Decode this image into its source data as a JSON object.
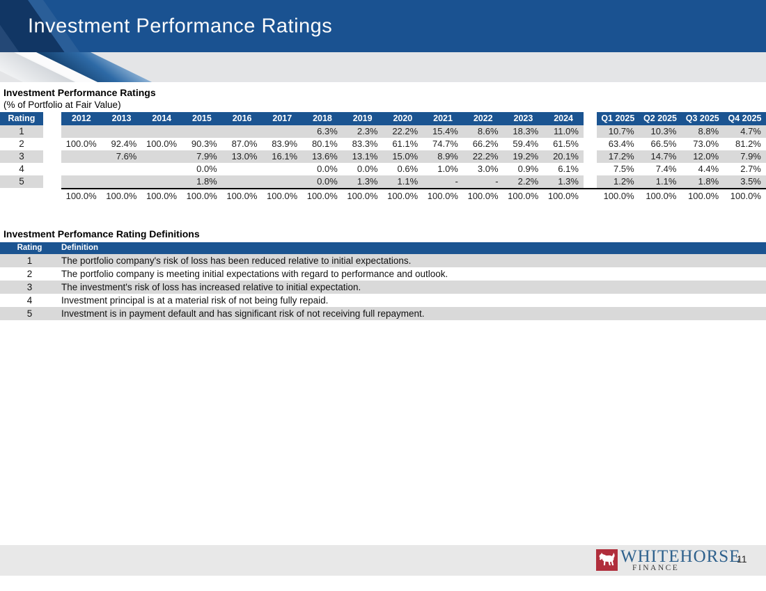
{
  "slide": {
    "title": "Investment Performance Ratings"
  },
  "deco": {
    "dot": "."
  },
  "colors": {
    "header_blue": "#1A5291",
    "table_header_blue": "#1B5491",
    "row_gray": "#D9D9D9",
    "band_gray": "#E4E5E7",
    "footer_gray": "#E8E8E8",
    "logo_red": "#B02E3C",
    "brand_blue": "#2D608C"
  },
  "ratings_table": {
    "heading": "Investment Performance Ratings",
    "subheading": "(% of Portfolio at Fair Value)",
    "rating_col_header": "Rating",
    "year_headers": [
      "2012",
      "2013",
      "2014",
      "2015",
      "2016",
      "2017",
      "2018",
      "2019",
      "2020",
      "2021",
      "2022",
      "2023",
      "2024"
    ],
    "quarter_headers": [
      "Q1 2025",
      "Q2 2025",
      "Q3 2025",
      "Q4 2025"
    ],
    "rows": [
      {
        "rating": "1",
        "years": [
          "",
          "",
          "",
          "",
          "",
          "",
          "6.3%",
          "2.3%",
          "22.2%",
          "15.4%",
          "8.6%",
          "18.3%",
          "11.0%"
        ],
        "quarters": [
          "10.7%",
          "10.3%",
          "8.8%",
          "4.7%"
        ]
      },
      {
        "rating": "2",
        "years": [
          "100.0%",
          "92.4%",
          "100.0%",
          "90.3%",
          "87.0%",
          "83.9%",
          "80.1%",
          "83.3%",
          "61.1%",
          "74.7%",
          "66.2%",
          "59.4%",
          "61.5%"
        ],
        "quarters": [
          "63.4%",
          "66.5%",
          "73.0%",
          "81.2%"
        ]
      },
      {
        "rating": "3",
        "years": [
          "",
          "7.6%",
          "",
          "7.9%",
          "13.0%",
          "16.1%",
          "13.6%",
          "13.1%",
          "15.0%",
          "8.9%",
          "22.2%",
          "19.2%",
          "20.1%"
        ],
        "quarters": [
          "17.2%",
          "14.7%",
          "12.0%",
          "7.9%"
        ]
      },
      {
        "rating": "4",
        "years": [
          "",
          "",
          "",
          "0.0%",
          "",
          "",
          "0.0%",
          "0.0%",
          "0.6%",
          "1.0%",
          "3.0%",
          "0.9%",
          "6.1%"
        ],
        "quarters": [
          "7.5%",
          "7.4%",
          "4.4%",
          "2.7%"
        ]
      },
      {
        "rating": "5",
        "years": [
          "",
          "",
          "",
          "1.8%",
          "",
          "",
          "0.0%",
          "1.3%",
          "1.1%",
          "-",
          "-",
          "2.2%",
          "1.3%"
        ],
        "quarters": [
          "1.2%",
          "1.1%",
          "1.8%",
          "3.5%"
        ]
      }
    ],
    "total_row": {
      "years": [
        "100.0%",
        "100.0%",
        "100.0%",
        "100.0%",
        "100.0%",
        "100.0%",
        "100.0%",
        "100.0%",
        "100.0%",
        "100.0%",
        "100.0%",
        "100.0%",
        "100.0%"
      ],
      "quarters": [
        "100.0%",
        "100.0%",
        "100.0%",
        "100.0%"
      ]
    }
  },
  "definitions_table": {
    "heading": "Investment Perfomance Rating Definitions",
    "col_headers": {
      "rating": "Rating",
      "definition": "Definition"
    },
    "rows": [
      {
        "rating": "1",
        "definition": "The portfolio company's risk of loss has been reduced relative to initial expectations."
      },
      {
        "rating": "2",
        "definition": "The portfolio company is meeting initial expectations with regard to performance and outlook."
      },
      {
        "rating": "3",
        "definition": "The investment's risk of loss has increased relative to initial expectation."
      },
      {
        "rating": "4",
        "definition": "Investment principal is at a material risk of not being fully repaid."
      },
      {
        "rating": "5",
        "definition": "Investment is in payment default and has significant risk of not receiving full repayment."
      }
    ]
  },
  "footer": {
    "brand_name": "WHITEHORSE",
    "brand_sub": "FINANCE",
    "horse_icon": "horse-icon",
    "page_number": "11"
  }
}
